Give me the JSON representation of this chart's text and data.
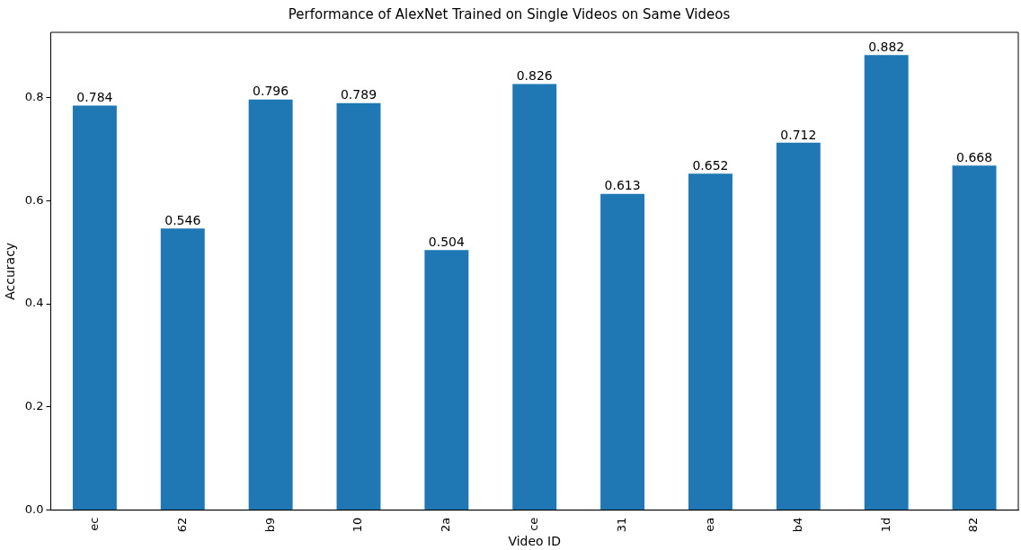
{
  "chart_data": {
    "type": "bar",
    "title": "Performance of AlexNet Trained on Single Videos on Same Videos",
    "xlabel": "Video ID",
    "ylabel": "Accuracy",
    "categories": [
      "ec",
      "62",
      "b9",
      "10",
      "2a",
      "ce",
      "31",
      "ea",
      "b4",
      "1d",
      "82"
    ],
    "values": [
      0.784,
      0.546,
      0.796,
      0.789,
      0.504,
      0.826,
      0.613,
      0.652,
      0.712,
      0.882,
      0.668
    ],
    "color": "#1f77b4",
    "ylim": [
      0,
      0.926
    ],
    "yticks": [
      {
        "value": 0,
        "label": "0.0"
      },
      0.2,
      0.4,
      0.6,
      0.8
    ],
    "grid": false,
    "data_labels": true
  }
}
